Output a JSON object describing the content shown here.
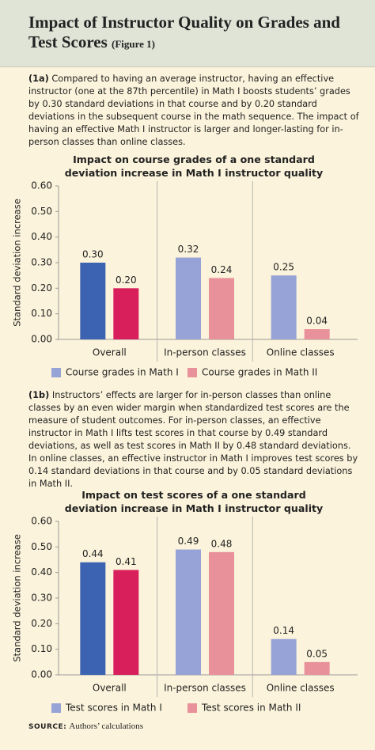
{
  "title": "Impact of Instructor Quality on Grades and Test Scores",
  "figure_label": "(Figure 1)",
  "descriptions": [
    {
      "label": "(1a)",
      "text": "Compared to having an average instructor, having an effective instructor (one at the 87th percentile) in Math I boosts students’ grades by 0.30 standard deviations in that course and by 0.20 standard deviations in the subsequent course in the math sequence. The impact of having an effective Math I instructor is larger and longer-lasting for in-person classes than online classes."
    },
    {
      "label": "(1b)",
      "text": "Instructors’ effects are larger for in-person classes than online classes by an even wider margin when standardized test scores are the measure of student outcomes. For in-person classes, an effective instructor in Math I lifts test scores in that course by 0.49 standard deviations, as well as test scores in Math II by 0.48 standard deviations. In online classes, an effective instructor in Math I improves test scores by 0.14 standard deviations in that course and by 0.05 standard deviations in Math II."
    }
  ],
  "chart_data": [
    {
      "type": "bar",
      "title": "Impact on course grades of a one standard deviation increase in Math I instructor quality",
      "ylabel": "Standard deviation increase",
      "categories": [
        "Overall",
        "In-person classes",
        "Online classes"
      ],
      "series": [
        {
          "name": "Course grades in Math I",
          "color": "#97a3d6",
          "colors": [
            "#3c62b2",
            "#97a3d6",
            "#97a3d6"
          ],
          "values": [
            0.3,
            0.32,
            0.25
          ],
          "value_labels": [
            "0.30",
            "0.32",
            "0.25"
          ]
        },
        {
          "name": "Course grades in Math II",
          "color": "#e9919b",
          "colors": [
            "#d81e5b",
            "#e9919b",
            "#e9919b"
          ],
          "values": [
            0.2,
            0.24,
            0.04
          ],
          "value_labels": [
            "0.20",
            "0.24",
            "0.04"
          ]
        }
      ],
      "ylim": [
        0,
        0.6
      ],
      "yticks": [
        {
          "value": 0,
          "label": "0.00"
        },
        {
          "value": 0.1,
          "label": "0.10"
        },
        {
          "value": 0.2,
          "label": "0.20"
        },
        {
          "value": 0.3,
          "label": "0.30"
        },
        {
          "value": 0.4,
          "label": "0.40"
        },
        {
          "value": 0.5,
          "label": "0.50"
        },
        {
          "value": 0.6,
          "label": "0.60"
        }
      ],
      "grid": false,
      "legend": "bottom"
    },
    {
      "type": "bar",
      "title": "Impact on test scores of a one standard deviation increase in Math I instructor quality",
      "ylabel": "Standard deviation increase",
      "categories": [
        "Overall",
        "In-person classes",
        "Online classes"
      ],
      "series": [
        {
          "name": "Test scores in Math I",
          "color": "#97a3d6",
          "colors": [
            "#3c62b2",
            "#97a3d6",
            "#97a3d6"
          ],
          "values": [
            0.44,
            0.49,
            0.14
          ],
          "value_labels": [
            "0.44",
            "0.49",
            "0.14"
          ]
        },
        {
          "name": "Test scores in Math II",
          "color": "#e9919b",
          "colors": [
            "#d81e5b",
            "#e9919b",
            "#e9919b"
          ],
          "values": [
            0.41,
            0.48,
            0.05
          ],
          "value_labels": [
            "0.41",
            "0.48",
            "0.05"
          ]
        }
      ],
      "ylim": [
        0,
        0.6
      ],
      "yticks": [
        {
          "value": 0,
          "label": "0.00"
        },
        {
          "value": 0.1,
          "label": "0.10"
        },
        {
          "value": 0.2,
          "label": "0.20"
        },
        {
          "value": 0.3,
          "label": "0.30"
        },
        {
          "value": 0.4,
          "label": "0.40"
        },
        {
          "value": 0.5,
          "label": "0.50"
        },
        {
          "value": 0.6,
          "label": "0.60"
        }
      ],
      "grid": false,
      "legend": "bottom"
    }
  ],
  "source": {
    "label": "SOURCE:",
    "text": "Authors’ calculations"
  }
}
